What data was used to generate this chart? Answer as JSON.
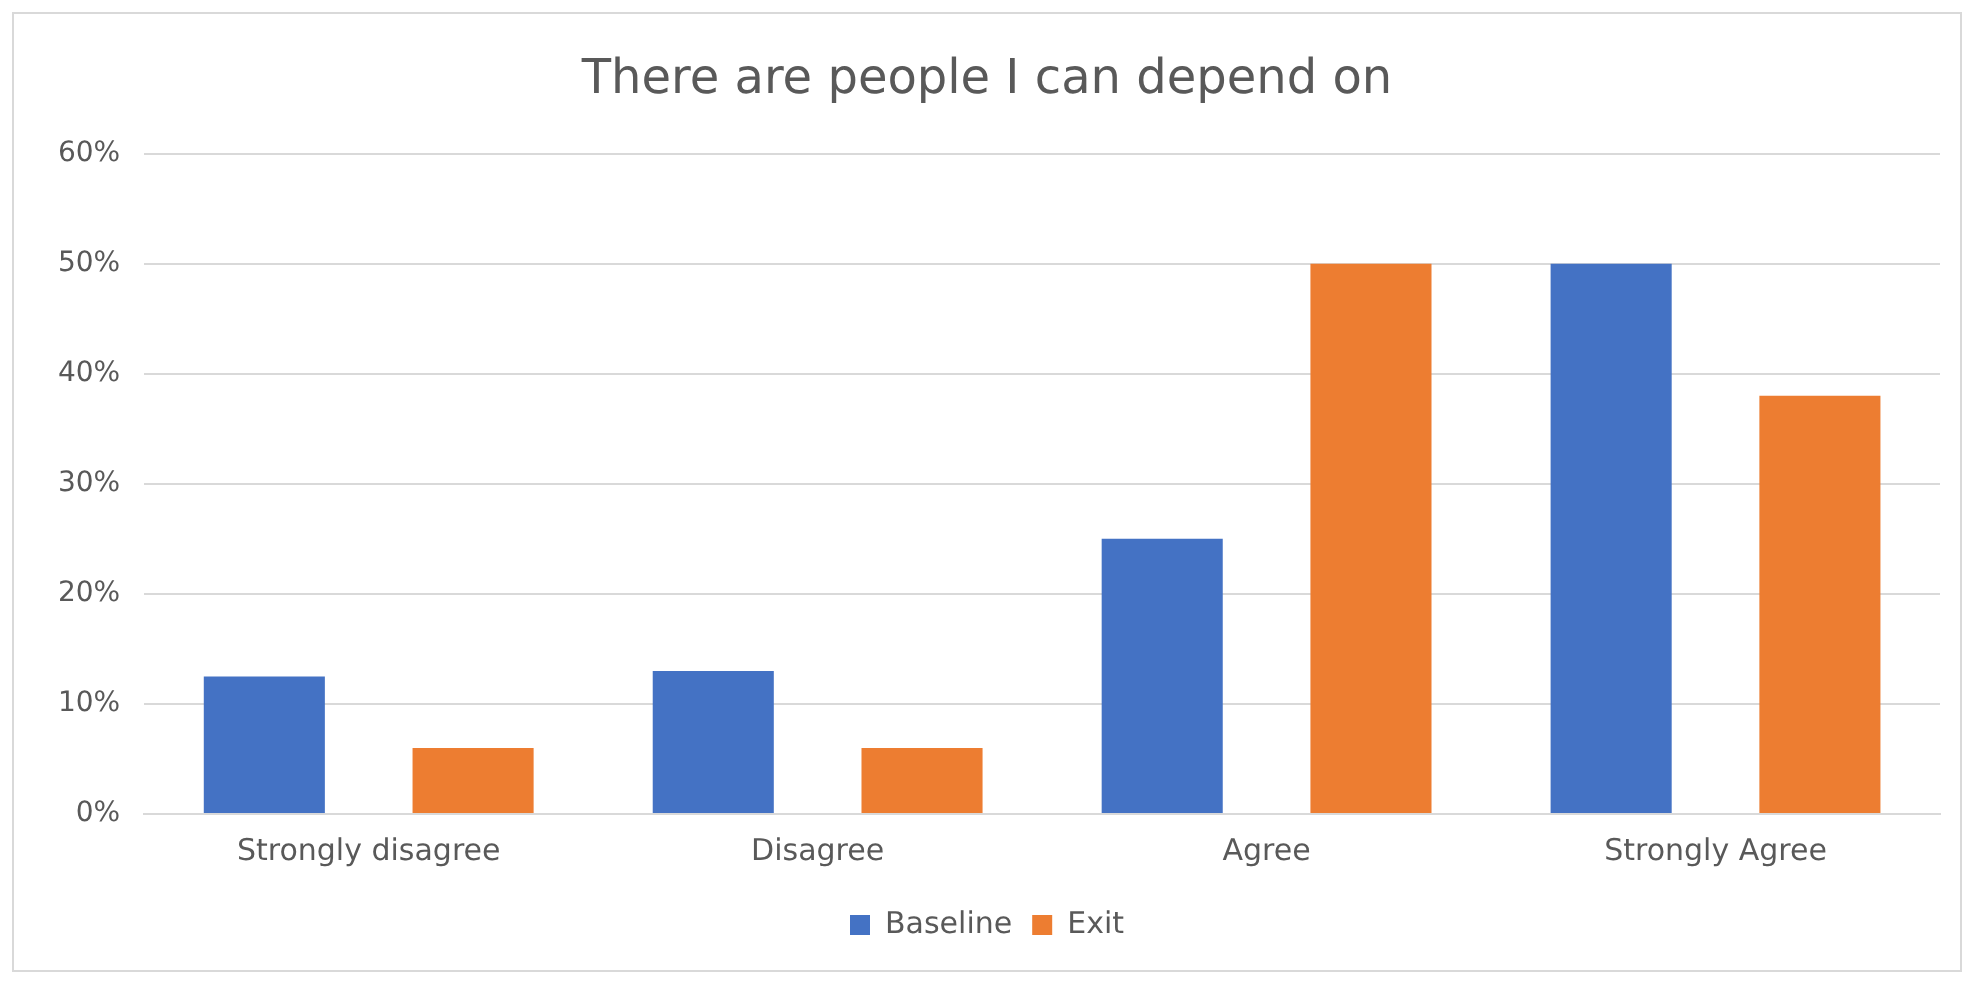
{
  "chart_data": {
    "type": "bar",
    "title": "There are people I can depend on",
    "categories": [
      "Strongly disagree",
      "Disagree",
      "Agree",
      "Strongly Agree"
    ],
    "series": [
      {
        "name": "Baseline",
        "color": "#4472c4",
        "values": [
          12.5,
          13,
          25,
          50
        ]
      },
      {
        "name": "Exit",
        "color": "#ed7d31",
        "values": [
          6,
          6,
          50,
          38
        ]
      }
    ],
    "ylim": [
      0,
      60
    ],
    "yticks": [
      {
        "value": 0,
        "label": "0%"
      },
      {
        "value": 10,
        "label": "10%"
      },
      {
        "value": 20,
        "label": "20%"
      },
      {
        "value": 30,
        "label": "30%"
      },
      {
        "value": 40,
        "label": "40%"
      },
      {
        "value": 50,
        "label": "50%"
      },
      {
        "value": 60,
        "label": "60%"
      }
    ],
    "grid": "y",
    "legend": "bottom"
  }
}
